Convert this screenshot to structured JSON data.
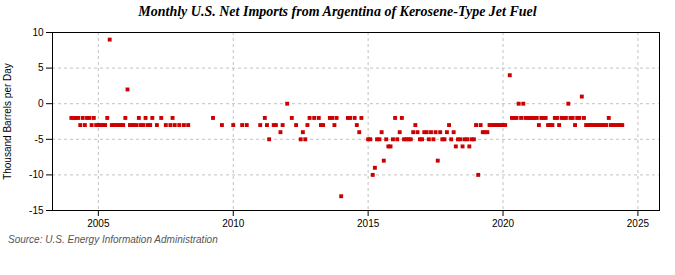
{
  "chart_data": {
    "type": "scatter",
    "title": "Monthly U.S. Net Imports from Argentina of Kerosene-Type Jet Fuel",
    "ylabel": "Thousand Barrels per Day",
    "source": "Source: U.S. Energy Information Administration",
    "color": "#cc0000",
    "marker": "square",
    "grid": true,
    "xlim": [
      2003.3,
      2025.8
    ],
    "xticks": [
      2005,
      2010,
      2015,
      2020,
      2025
    ],
    "ylim": [
      -15,
      10
    ],
    "yticks": [
      -15,
      -10,
      -5,
      0,
      5,
      10
    ],
    "x": [
      2004.0,
      2004.08,
      2004.17,
      2004.25,
      2004.33,
      2004.42,
      2004.5,
      2004.58,
      2004.67,
      2004.75,
      2004.83,
      2004.92,
      2005.0,
      2005.08,
      2005.17,
      2005.25,
      2005.33,
      2005.42,
      2005.5,
      2005.58,
      2005.67,
      2005.75,
      2005.83,
      2005.92,
      2006.0,
      2006.08,
      2006.17,
      2006.25,
      2006.33,
      2006.42,
      2006.5,
      2006.58,
      2006.67,
      2006.75,
      2006.83,
      2006.92,
      2007.0,
      2007.17,
      2007.33,
      2007.5,
      2007.67,
      2007.75,
      2007.83,
      2008.0,
      2008.17,
      2008.33,
      2009.25,
      2009.58,
      2010.0,
      2010.33,
      2010.5,
      2011.0,
      2011.17,
      2011.25,
      2011.33,
      2011.5,
      2011.58,
      2011.75,
      2011.83,
      2012.0,
      2012.17,
      2012.33,
      2012.5,
      2012.58,
      2012.67,
      2012.75,
      2012.83,
      2013.0,
      2013.17,
      2013.25,
      2013.33,
      2013.58,
      2013.67,
      2013.75,
      2013.83,
      2014.0,
      2014.25,
      2014.33,
      2014.5,
      2014.58,
      2014.67,
      2014.75,
      2015.0,
      2015.08,
      2015.17,
      2015.25,
      2015.33,
      2015.42,
      2015.5,
      2015.58,
      2015.67,
      2015.75,
      2015.83,
      2015.92,
      2016.0,
      2016.08,
      2016.17,
      2016.25,
      2016.33,
      2016.42,
      2016.5,
      2016.58,
      2016.67,
      2016.75,
      2016.83,
      2016.92,
      2017.0,
      2017.08,
      2017.17,
      2017.25,
      2017.33,
      2017.42,
      2017.5,
      2017.58,
      2017.67,
      2017.75,
      2017.83,
      2017.92,
      2018.0,
      2018.08,
      2018.17,
      2018.25,
      2018.33,
      2018.42,
      2018.5,
      2018.58,
      2018.67,
      2018.75,
      2018.83,
      2018.92,
      2019.0,
      2019.08,
      2019.17,
      2019.25,
      2019.33,
      2019.42,
      2019.5,
      2019.58,
      2019.67,
      2019.75,
      2019.83,
      2019.92,
      2020.0,
      2020.08,
      2020.25,
      2020.33,
      2020.42,
      2020.5,
      2020.58,
      2020.67,
      2020.75,
      2020.83,
      2020.92,
      2021.0,
      2021.08,
      2021.17,
      2021.25,
      2021.33,
      2021.42,
      2021.5,
      2021.58,
      2021.67,
      2021.75,
      2021.83,
      2021.92,
      2022.0,
      2022.08,
      2022.17,
      2022.25,
      2022.33,
      2022.42,
      2022.5,
      2022.58,
      2022.67,
      2022.75,
      2022.83,
      2022.92,
      2023.0,
      2023.08,
      2023.17,
      2023.25,
      2023.33,
      2023.42,
      2023.5,
      2023.58,
      2023.67,
      2023.75,
      2023.83,
      2023.92,
      2024.0,
      2024.08,
      2024.17,
      2024.25,
      2024.33,
      2024.42
    ],
    "values": [
      -2,
      -2,
      -2,
      -2,
      -3,
      -2,
      -3,
      -2,
      -2,
      -3,
      -2,
      -3,
      -3,
      -3,
      -3,
      -3,
      -2,
      9,
      -3,
      -3,
      -3,
      -3,
      -3,
      -3,
      -2,
      2,
      -3,
      -3,
      -3,
      -3,
      -2,
      -3,
      -3,
      -2,
      -3,
      -3,
      -2,
      -3,
      -2,
      -3,
      -3,
      -2,
      -3,
      -3,
      -3,
      -3,
      -2,
      -3,
      -3,
      -3,
      -3,
      -3,
      -2,
      -3,
      -5,
      -3,
      -3,
      -4,
      -3,
      0,
      -2,
      -3,
      -5,
      -4,
      -5,
      -3,
      -2,
      -2,
      -2,
      -3,
      -3,
      -2,
      -2,
      -3,
      -2,
      -13,
      -2,
      -2,
      -2,
      -3,
      -4,
      -2,
      -5,
      -5,
      -10,
      -9,
      -5,
      -5,
      -4,
      -8,
      -5,
      -6,
      -6,
      -5,
      -2,
      -5,
      -4,
      -2,
      -5,
      -5,
      -5,
      -5,
      -4,
      -3,
      -4,
      -5,
      -5,
      -4,
      -4,
      -5,
      -4,
      -5,
      -4,
      -8,
      -4,
      -5,
      -5,
      -4,
      -3,
      -5,
      -4,
      -6,
      -5,
      -5,
      -6,
      -5,
      -5,
      -6,
      -5,
      -5,
      -3,
      -10,
      -3,
      -4,
      -4,
      -4,
      -3,
      -3,
      -3,
      -3,
      -3,
      -3,
      -3,
      -3,
      4,
      -2,
      -2,
      -2,
      0,
      -2,
      0,
      -2,
      -2,
      -2,
      -2,
      -2,
      -2,
      -3,
      -2,
      -2,
      -2,
      -3,
      -3,
      -3,
      -2,
      -2,
      -3,
      -2,
      -2,
      -2,
      0,
      -2,
      -2,
      -3,
      -2,
      -2,
      1,
      -2,
      -3,
      -3,
      -3,
      -3,
      -3,
      -3,
      -3,
      -3,
      -3,
      -3,
      -2,
      -3,
      -3,
      -3,
      -3,
      -3,
      -3
    ]
  }
}
